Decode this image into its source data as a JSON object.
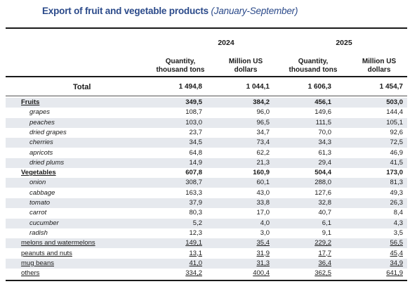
{
  "title": {
    "main": "Export of fruit and vegetable products",
    "period": "(January-September)"
  },
  "years": [
    "2024",
    "2025"
  ],
  "columns": [
    "Quantity,\nthousand tons",
    "Million US\ndollars",
    "Quantity,\nthousand tons",
    "Million US\ndollars"
  ],
  "total": {
    "label": "Total",
    "values": [
      "1 494,8",
      "1 044,1",
      "1 606,3",
      "1 454,7"
    ]
  },
  "rows": [
    {
      "name": "Fruits",
      "kind": "cat",
      "values": [
        "349,5",
        "384,2",
        "456,1",
        "503,0"
      ]
    },
    {
      "name": "grapes",
      "kind": "sub",
      "values": [
        "108,7",
        "96,0",
        "149,6",
        "144,4"
      ]
    },
    {
      "name": "peaches",
      "kind": "sub",
      "values": [
        "103,0",
        "96,5",
        "111,5",
        "105,1"
      ]
    },
    {
      "name": "dried grapes",
      "kind": "sub",
      "values": [
        "23,7",
        "34,7",
        "70,0",
        "92,6"
      ]
    },
    {
      "name": "cherries",
      "kind": "sub",
      "values": [
        "34,5",
        "73,4",
        "34,3",
        "72,5"
      ]
    },
    {
      "name": "apricots",
      "kind": "sub",
      "values": [
        "64,8",
        "62,2",
        "61,3",
        "46,9"
      ]
    },
    {
      "name": "dried plums",
      "kind": "sub",
      "values": [
        "14,9",
        "21,3",
        "29,4",
        "41,5"
      ]
    },
    {
      "name": "Vegetables",
      "kind": "cat",
      "values": [
        "607,8",
        "160,9",
        "504,4",
        "173,0"
      ]
    },
    {
      "name": "onion",
      "kind": "sub",
      "values": [
        "308,7",
        "60,1",
        "288,0",
        "81,3"
      ]
    },
    {
      "name": "cabbage",
      "kind": "sub",
      "values": [
        "163,3",
        "43,0",
        "127,6",
        "49,3"
      ]
    },
    {
      "name": "tomato",
      "kind": "sub",
      "values": [
        "37,9",
        "33,8",
        "32,8",
        "26,3"
      ]
    },
    {
      "name": "carrot",
      "kind": "sub",
      "values": [
        "80,3",
        "17,0",
        "40,7",
        "8,4"
      ]
    },
    {
      "name": "cucumber",
      "kind": "sub",
      "values": [
        "5,2",
        "4,0",
        "6,1",
        "4,3"
      ]
    },
    {
      "name": "radish",
      "kind": "sub",
      "values": [
        "12,3",
        "3,0",
        "9,1",
        "3,5"
      ]
    },
    {
      "name": "melons and watermelons",
      "kind": "item",
      "values": [
        "149,1",
        "35,4",
        "229,2",
        "56,5"
      ]
    },
    {
      "name": "peanuts and nuts",
      "kind": "item",
      "values": [
        "13,1",
        "31,9",
        "17,7",
        "45,4"
      ]
    },
    {
      "name": "mug beans",
      "kind": "item",
      "values": [
        "41,0",
        "31,3",
        "36,4",
        "34,9"
      ]
    },
    {
      "name": "others",
      "kind": "item",
      "values": [
        "334,2",
        "400,4",
        "362,5",
        "641,9"
      ]
    }
  ]
}
